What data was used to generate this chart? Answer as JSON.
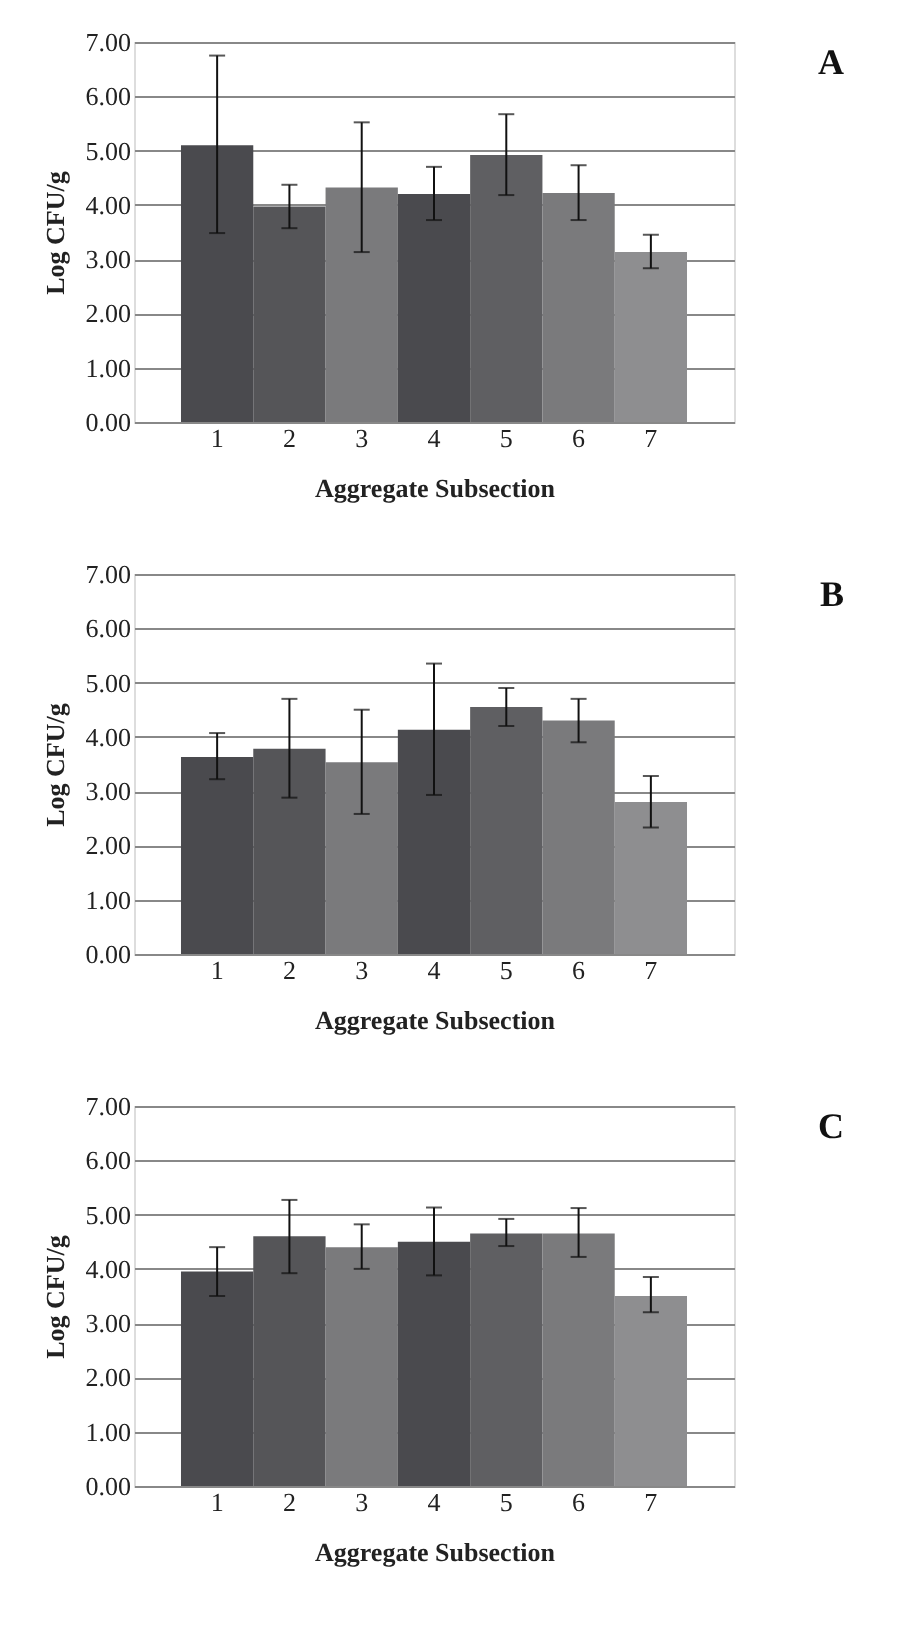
{
  "chart_data": [
    {
      "type": "bar",
      "annotations": [
        "A"
      ],
      "xlabel": "Aggregate Subsection",
      "ylabel": "Log CFU/g",
      "categories": [
        "1",
        "2",
        "3",
        "4",
        "5",
        "6",
        "7"
      ],
      "values": [
        5.1,
        3.97,
        4.32,
        4.2,
        4.92,
        4.22,
        3.13
      ],
      "errors": [
        [
          3.48,
          6.75
        ],
        [
          3.57,
          4.37
        ],
        [
          3.13,
          5.52
        ],
        [
          3.72,
          4.7
        ],
        [
          4.18,
          5.67
        ],
        [
          3.72,
          4.73
        ],
        [
          2.83,
          3.45
        ]
      ],
      "colors": [
        "#4a4a4e",
        "#555558",
        "#7a7a7c",
        "#4a4a4e",
        "#5f5f62",
        "#7a7a7c",
        "#8e8e90"
      ],
      "ylim": [
        0,
        7
      ],
      "yticks": [
        {
          "value": 0,
          "label": "0.00"
        },
        {
          "value": 1,
          "label": "1.00"
        },
        {
          "value": 2,
          "label": "2.00"
        },
        {
          "value": 3,
          "label": "3.00"
        },
        {
          "value": 4,
          "label": "4.00"
        },
        {
          "value": 5,
          "label": "5.00"
        },
        {
          "value": 6,
          "label": "6.00"
        },
        {
          "value": 7,
          "label": "7.00"
        }
      ],
      "grid": "y"
    },
    {
      "type": "bar",
      "annotations": [
        "B"
      ],
      "xlabel": "Aggregate Subsection",
      "ylabel": "Log CFU/g",
      "categories": [
        "1",
        "2",
        "3",
        "4",
        "5",
        "6",
        "7"
      ],
      "values": [
        3.63,
        3.78,
        3.53,
        4.13,
        4.55,
        4.3,
        2.8
      ],
      "errors": [
        [
          3.22,
          4.07
        ],
        [
          2.88,
          4.7
        ],
        [
          2.58,
          4.5
        ],
        [
          2.93,
          5.35
        ],
        [
          4.2,
          4.9
        ],
        [
          3.9,
          4.7
        ],
        [
          2.33,
          3.28
        ]
      ],
      "colors": [
        "#4a4a4e",
        "#555558",
        "#7a7a7c",
        "#4a4a4e",
        "#5f5f62",
        "#7a7a7c",
        "#8e8e90"
      ],
      "ylim": [
        0,
        7
      ],
      "yticks": [
        {
          "value": 0,
          "label": "0.00"
        },
        {
          "value": 1,
          "label": "1.00"
        },
        {
          "value": 2,
          "label": "2.00"
        },
        {
          "value": 3,
          "label": "3.00"
        },
        {
          "value": 4,
          "label": "4.00"
        },
        {
          "value": 5,
          "label": "5.00"
        },
        {
          "value": 6,
          "label": "6.00"
        },
        {
          "value": 7,
          "label": "7.00"
        }
      ],
      "grid": "y"
    },
    {
      "type": "bar",
      "annotations": [
        "C"
      ],
      "xlabel": "Aggregate Subsection",
      "ylabel": "Log CFU/g",
      "categories": [
        "1",
        "2",
        "3",
        "4",
        "5",
        "6",
        "7"
      ],
      "values": [
        3.95,
        4.6,
        4.4,
        4.5,
        4.65,
        4.65,
        3.5
      ],
      "errors": [
        [
          3.5,
          4.4
        ],
        [
          3.92,
          5.27
        ],
        [
          4.0,
          4.82
        ],
        [
          3.88,
          5.13
        ],
        [
          4.42,
          4.92
        ],
        [
          4.22,
          5.12
        ],
        [
          3.2,
          3.85
        ]
      ],
      "colors": [
        "#4a4a4e",
        "#555558",
        "#7a7a7c",
        "#4a4a4e",
        "#5f5f62",
        "#7a7a7c",
        "#8e8e90"
      ],
      "ylim": [
        0,
        7
      ],
      "yticks": [
        {
          "value": 0,
          "label": "0.00"
        },
        {
          "value": 1,
          "label": "1.00"
        },
        {
          "value": 2,
          "label": "2.00"
        },
        {
          "value": 3,
          "label": "3.00"
        },
        {
          "value": 4,
          "label": "4.00"
        },
        {
          "value": 5,
          "label": "5.00"
        },
        {
          "value": 6,
          "label": "6.00"
        },
        {
          "value": 7,
          "label": "7.00"
        }
      ],
      "grid": "y"
    }
  ]
}
